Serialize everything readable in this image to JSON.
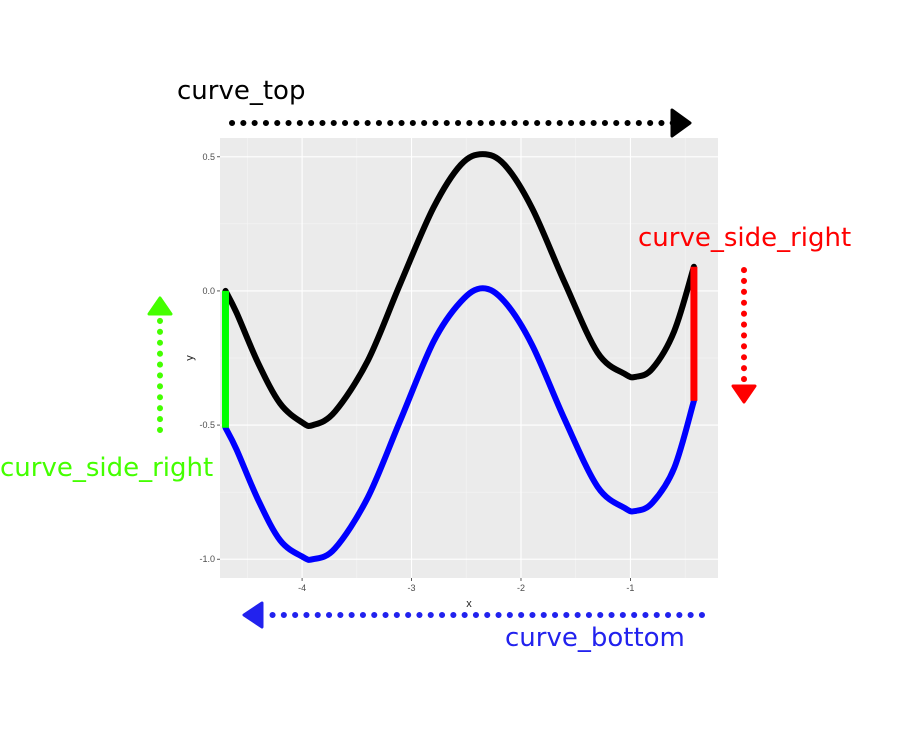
{
  "chart_data": {
    "type": "line",
    "xlabel": "x",
    "ylabel": "y",
    "xlim": [
      -4.75,
      -0.2
    ],
    "ylim": [
      -1.07,
      0.57
    ],
    "x_ticks": [
      -4,
      -3,
      -2,
      -1
    ],
    "y_ticks": [
      0.5,
      0.0,
      -0.5,
      -1.0
    ],
    "x_tick_labels": [
      "-4",
      "-3",
      "-2",
      "-1"
    ],
    "y_tick_labels": [
      "0.5",
      "0.0",
      "-0.5",
      "-1.0"
    ],
    "grid": true,
    "background": "#ebebeb",
    "series": [
      {
        "color": "#000000",
        "x": [
          -4.7,
          -4.6,
          -4.4,
          -4.2,
          -4.0,
          -3.9,
          -3.7,
          -3.4,
          -3.1,
          -2.8,
          -2.55,
          -2.35,
          -2.15,
          -1.9,
          -1.6,
          -1.3,
          -1.05,
          -0.95,
          -0.8,
          -0.6,
          -0.42
        ],
        "y": [
          0.0,
          -0.08,
          -0.27,
          -0.42,
          -0.49,
          -0.5,
          -0.45,
          -0.26,
          0.03,
          0.31,
          0.47,
          0.51,
          0.47,
          0.31,
          0.03,
          -0.23,
          -0.31,
          -0.32,
          -0.29,
          -0.15,
          0.09
        ]
      },
      {
        "color": "#0000ff",
        "x": [
          -4.7,
          -4.6,
          -4.4,
          -4.2,
          -4.0,
          -3.9,
          -3.7,
          -3.4,
          -3.1,
          -2.8,
          -2.55,
          -2.35,
          -2.15,
          -1.9,
          -1.6,
          -1.3,
          -1.05,
          -0.95,
          -0.8,
          -0.6,
          -0.42
        ],
        "y": [
          -0.51,
          -0.59,
          -0.78,
          -0.93,
          -0.99,
          -1.0,
          -0.96,
          -0.77,
          -0.48,
          -0.19,
          -0.04,
          0.01,
          -0.04,
          -0.2,
          -0.48,
          -0.73,
          -0.81,
          -0.82,
          -0.79,
          -0.66,
          -0.41
        ]
      }
    ],
    "side_lines": [
      {
        "color": "#00ff00",
        "x": -4.7,
        "y_from": 0.0,
        "y_to": -0.51
      },
      {
        "color": "#ff0000",
        "x": -0.42,
        "y_from": 0.09,
        "y_to": -0.41
      }
    ]
  },
  "annotations": {
    "curve_top": {
      "label": "curve_top",
      "color": "#000000",
      "direction": "right"
    },
    "curve_side_right_red": {
      "label": "curve_side_right",
      "color": "#ff0000",
      "direction": "down"
    },
    "curve_side_right_green": {
      "label": "curve_side_right",
      "color": "#44ff00",
      "direction": "up"
    },
    "curve_bottom": {
      "label": "curve_bottom",
      "color": "#2222ee",
      "direction": "left"
    }
  }
}
